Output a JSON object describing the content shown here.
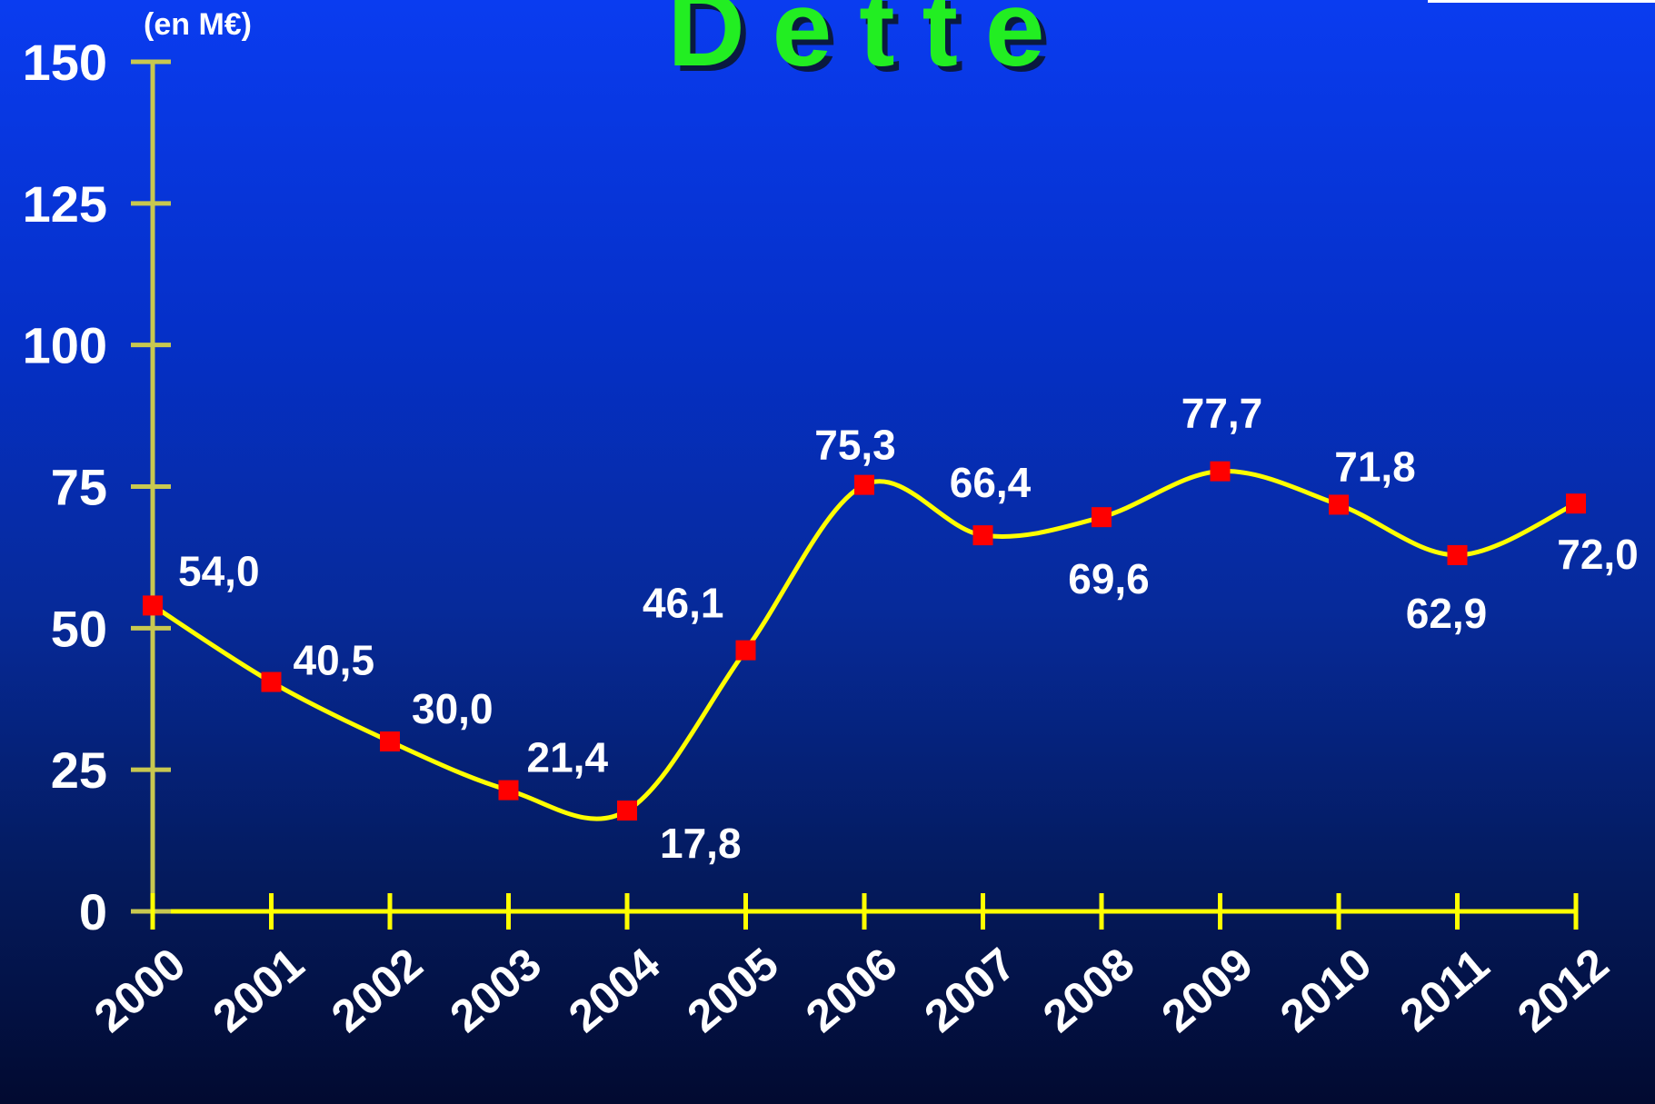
{
  "chart_data": {
    "type": "line",
    "title": "Dette",
    "unit_label": "(en M€)",
    "xlabel": "",
    "ylabel": "",
    "x": [
      "2000",
      "2001",
      "2002",
      "2003",
      "2004",
      "2005",
      "2006",
      "2007",
      "2008",
      "2009",
      "2010",
      "2011",
      "2012"
    ],
    "values": [
      54.0,
      40.5,
      30.0,
      21.4,
      17.8,
      46.1,
      75.3,
      66.4,
      69.6,
      77.7,
      71.8,
      62.9,
      72.0
    ],
    "value_labels": [
      "54,0",
      "40,5",
      "30,0",
      "21,4",
      "17,8",
      "46,1",
      "75,3",
      "66,4",
      "69,6",
      "77,7",
      "71,8",
      "62,9",
      "72,0"
    ],
    "ylim": [
      0,
      150
    ],
    "yticks": [
      0,
      25,
      50,
      75,
      100,
      125,
      150
    ],
    "ytick_labels": [
      "0",
      "25",
      "50",
      "75",
      "100",
      "125",
      "150"
    ],
    "grid": false,
    "legend": "none",
    "smooth": true,
    "colors": {
      "line": "#ffff00",
      "axis_y": "#c8c850",
      "axis_x": "#ffff00",
      "marker": "#ff0000",
      "title": "#22ee22",
      "title_shadow": "#0a1a40",
      "text": "#ffffff"
    }
  }
}
